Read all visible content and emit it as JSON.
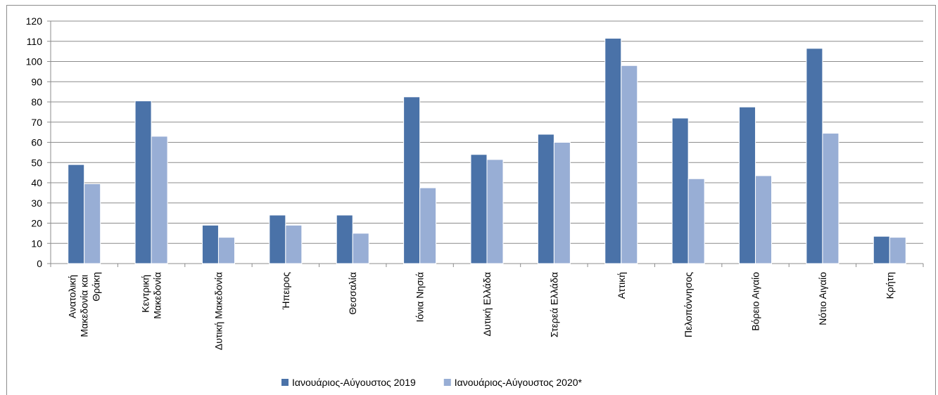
{
  "chart_data": {
    "type": "bar",
    "categories": [
      "Ανατολική Μακεδονία και Θράκη",
      "Κεντρική Μακεδονία",
      "Δυτική Μακεδονία",
      "Ήπειρος",
      "Θεσσαλία",
      "Ιόνια Νησιά",
      "Δυτική Ελλάδα",
      "Στερεά Ελλάδα",
      "Αττική",
      "Πελοπόννησος",
      "Βόρειο Αιγαίο",
      "Νότιο Αιγαίο",
      "Κρήτη"
    ],
    "series": [
      {
        "name": "Ιανουάριος-Αύγουστος 2019",
        "color": "#4a72a8",
        "values": [
          49,
          80.5,
          19,
          24,
          24,
          82.5,
          54,
          64,
          111.5,
          72,
          77.5,
          106.5,
          13.5
        ]
      },
      {
        "name": "Ιανουάριος-Αύγουστος 2020*",
        "color": "#98aed5",
        "values": [
          39.5,
          63,
          13,
          19,
          15,
          37.5,
          51.5,
          60,
          98,
          42,
          43.5,
          64.5,
          13
        ]
      }
    ],
    "ylim": [
      0,
      120
    ],
    "yticks": [
      0,
      10,
      20,
      30,
      40,
      50,
      60,
      70,
      80,
      90,
      100,
      110,
      120
    ],
    "grid": true,
    "legend": "bottom"
  }
}
